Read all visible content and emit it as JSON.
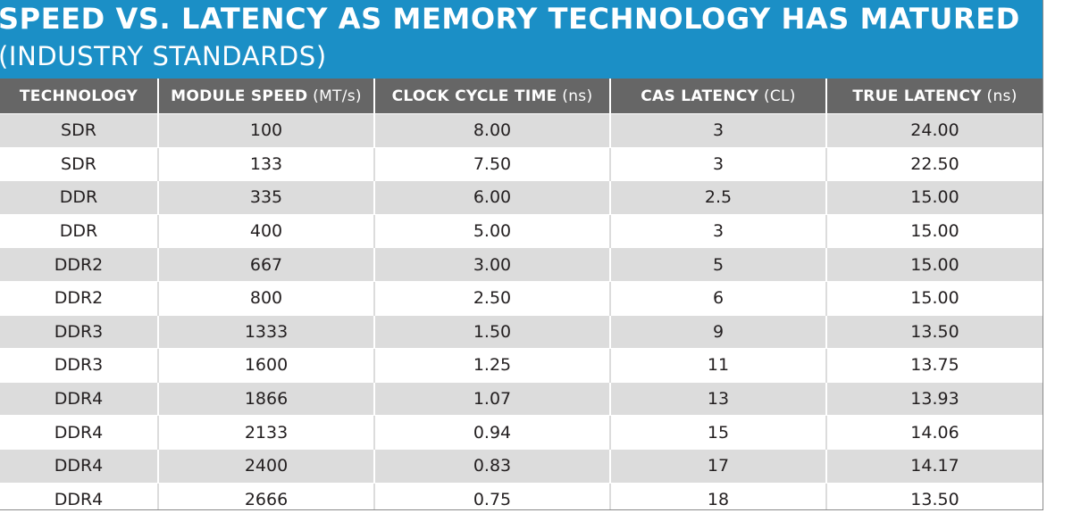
{
  "title": {
    "line1": "SPEED VS. LATENCY AS MEMORY TECHNOLOGY HAS MATURED",
    "line2": "(INDUSTRY STANDARDS)"
  },
  "colors": {
    "title_band": "#1b8fc6",
    "header_band": "#666666",
    "stripe": "#dcdcdc"
  },
  "chart_data": {
    "type": "table",
    "columns": [
      {
        "label": "TECHNOLOGY",
        "unit": ""
      },
      {
        "label": "MODULE SPEED",
        "unit": " (MT/s)"
      },
      {
        "label": "CLOCK CYCLE TIME",
        "unit": " (ns)"
      },
      {
        "label": "CAS LATENCY",
        "unit": " (CL)"
      },
      {
        "label": "TRUE LATENCY",
        "unit": " (ns)"
      }
    ],
    "rows": [
      [
        "SDR",
        "100",
        "8.00",
        "3",
        "24.00"
      ],
      [
        "SDR",
        "133",
        "7.50",
        "3",
        "22.50"
      ],
      [
        "DDR",
        "335",
        "6.00",
        "2.5",
        "15.00"
      ],
      [
        "DDR",
        "400",
        "5.00",
        "3",
        "15.00"
      ],
      [
        "DDR2",
        "667",
        "3.00",
        "5",
        "15.00"
      ],
      [
        "DDR2",
        "800",
        "2.50",
        "6",
        "15.00"
      ],
      [
        "DDR3",
        "1333",
        "1.50",
        "9",
        "13.50"
      ],
      [
        "DDR3",
        "1600",
        "1.25",
        "11",
        "13.75"
      ],
      [
        "DDR4",
        "1866",
        "1.07",
        "13",
        "13.93"
      ],
      [
        "DDR4",
        "2133",
        "0.94",
        "15",
        "14.06"
      ],
      [
        "DDR4",
        "2400",
        "0.83",
        "17",
        "14.17"
      ],
      [
        "DDR4",
        "2666",
        "0.75",
        "18",
        "13.50"
      ]
    ]
  }
}
